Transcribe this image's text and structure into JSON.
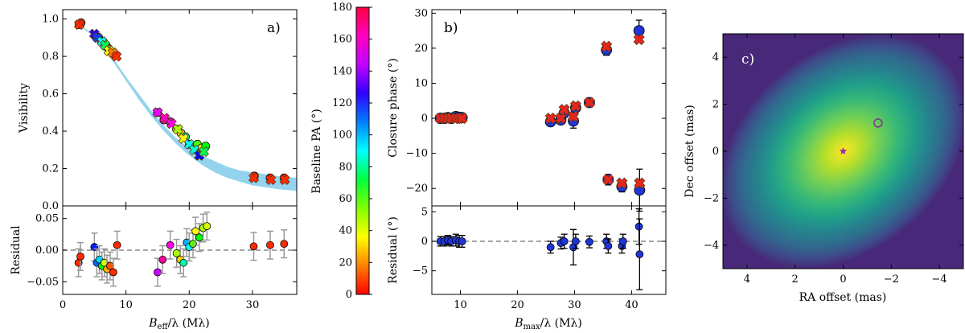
{
  "colors": {
    "band": "#87ceeb",
    "orange_marker": "#f07a2a",
    "red_marker": "#e8251b",
    "blue_marker": "#1f35d6",
    "residual_line": "#888888",
    "errbar_gray": "#999999"
  },
  "chart_data": [
    {
      "id": "a",
      "panel_label": "a)",
      "type": "scatter",
      "ylabel": "Visibility",
      "xlim": [
        0,
        37
      ],
      "ylim": [
        0,
        1.05
      ],
      "xticks": [
        "0",
        "10",
        "20",
        "30"
      ],
      "yticks": [
        "0.0",
        "0.2",
        "0.4",
        "0.6",
        "0.8",
        "1.0"
      ],
      "model_band": {
        "x": [
          0,
          2,
          4,
          6,
          8,
          10,
          12,
          14,
          16,
          18,
          20,
          22,
          24,
          26,
          28,
          30,
          32,
          34,
          37
        ],
        "lower": [
          1.0,
          0.98,
          0.93,
          0.86,
          0.77,
          0.67,
          0.57,
          0.48,
          0.4,
          0.33,
          0.27,
          0.22,
          0.18,
          0.15,
          0.13,
          0.11,
          0.1,
          0.09,
          0.08
        ],
        "upper": [
          1.0,
          0.98,
          0.94,
          0.87,
          0.79,
          0.69,
          0.6,
          0.51,
          0.43,
          0.36,
          0.31,
          0.27,
          0.24,
          0.21,
          0.19,
          0.18,
          0.17,
          0.16,
          0.15
        ]
      },
      "observed": {
        "x": [
          2.6,
          2.9,
          5.2,
          5.7,
          6.1,
          6.6,
          7.0,
          7.3,
          7.8,
          8.2,
          15.0,
          16.0,
          17.0,
          18.0,
          18.7,
          19.4,
          20.0,
          20.7,
          21.3,
          22.0,
          22.6,
          30.3,
          32.8,
          35.0
        ],
        "y": [
          0.97,
          0.98,
          0.91,
          0.9,
          0.88,
          0.87,
          0.85,
          0.84,
          0.82,
          0.81,
          0.5,
          0.46,
          0.45,
          0.41,
          0.39,
          0.37,
          0.33,
          0.32,
          0.33,
          0.31,
          0.32,
          0.16,
          0.15,
          0.15
        ],
        "pa": [
          5,
          5,
          120,
          110,
          95,
          60,
          35,
          20,
          10,
          5,
          150,
          170,
          160,
          40,
          25,
          80,
          100,
          90,
          50,
          30,
          60,
          5,
          5,
          5
        ],
        "yerr": 0.015
      },
      "model_points": {
        "x": [
          2.6,
          5.0,
          5.5,
          6.2,
          6.7,
          7.3,
          7.9,
          8.5,
          15.0,
          16.1,
          17.2,
          18.2,
          19.1,
          20.0,
          20.8,
          21.6,
          22.3,
          30.2,
          32.9,
          35.1
        ],
        "y": [
          0.97,
          0.92,
          0.9,
          0.88,
          0.86,
          0.83,
          0.82,
          0.8,
          0.5,
          0.47,
          0.44,
          0.41,
          0.36,
          0.33,
          0.3,
          0.27,
          0.29,
          0.15,
          0.14,
          0.14
        ],
        "pa": [
          5,
          130,
          115,
          90,
          70,
          30,
          15,
          5,
          155,
          165,
          160,
          40,
          30,
          90,
          85,
          125,
          70,
          5,
          5,
          5
        ]
      }
    },
    {
      "id": "a_residual",
      "type": "scatter",
      "ylabel": "Residual",
      "xlabel": "B_eff/λ (Mλ)",
      "xlabel_main": "B",
      "xlabel_sub": "eff",
      "xlabel_rest": "/λ (Mλ)",
      "xlim": [
        0,
        37
      ],
      "ylim": [
        -0.07,
        0.07
      ],
      "xticks": [
        "0",
        "10",
        "20",
        "30"
      ],
      "yticks": [
        "−0.05",
        "0.00",
        "0.05"
      ],
      "points": {
        "x": [
          2.5,
          2.8,
          5.0,
          5.4,
          5.8,
          6.2,
          6.6,
          7.0,
          7.5,
          8.0,
          8.6,
          15.0,
          15.8,
          17.0,
          18.0,
          18.6,
          19.1,
          19.6,
          20.0,
          20.6,
          21.0,
          21.6,
          22.2,
          22.8,
          30.2,
          32.8,
          35.0
        ],
        "y": [
          -0.02,
          -0.01,
          0.005,
          -0.02,
          -0.015,
          -0.025,
          -0.02,
          -0.03,
          -0.025,
          -0.035,
          0.008,
          -0.035,
          -0.015,
          0.008,
          -0.005,
          -0.015,
          -0.02,
          0.012,
          0.005,
          0.01,
          0.03,
          0.02,
          0.035,
          0.038,
          0.006,
          0.008,
          0.01
        ],
        "pa": [
          5,
          5,
          120,
          110,
          95,
          60,
          35,
          20,
          10,
          5,
          5,
          150,
          170,
          160,
          40,
          25,
          80,
          100,
          90,
          50,
          30,
          60,
          40,
          35,
          5,
          5,
          5
        ],
        "yerr": 0.022
      }
    },
    {
      "id": "colorbar",
      "type": "heatmap",
      "label": "Baseline PA (°)",
      "range": [
        0,
        180
      ],
      "ticks": [
        "0",
        "20",
        "40",
        "60",
        "80",
        "100",
        "120",
        "140",
        "160",
        "180"
      ]
    },
    {
      "id": "b",
      "panel_label": "b)",
      "type": "scatter",
      "ylabel": "Closure phase (°)",
      "xlim": [
        5,
        46
      ],
      "ylim": [
        -25,
        31
      ],
      "xticks": [
        "10",
        "20",
        "30",
        "40"
      ],
      "yticks": [
        "−20",
        "−10",
        "0",
        "10",
        "20",
        "30"
      ],
      "observed": {
        "x": [
          6.5,
          7.2,
          7.8,
          8.4,
          9.2,
          9.8,
          10.3,
          25.8,
          27.6,
          28.2,
          29.8,
          30.2,
          32.6,
          35.6,
          35.9,
          38.3,
          41.3,
          41.4
        ],
        "y": [
          0.0,
          0.0,
          0.2,
          0.0,
          0.5,
          0.3,
          0.2,
          -1.0,
          -0.5,
          1.5,
          -0.8,
          3.0,
          4.5,
          19.5,
          -17.5,
          -19.5,
          25.0,
          -20.5
        ],
        "yerr": [
          0.6,
          0.6,
          0.6,
          0.6,
          0.8,
          0.8,
          0.8,
          1.2,
          1.0,
          1.2,
          2.0,
          1.2,
          1.0,
          1.5,
          1.5,
          1.5,
          3.0,
          6.0
        ]
      },
      "model": {
        "x": [
          6.5,
          7.2,
          7.8,
          8.4,
          9.2,
          9.8,
          10.3,
          25.8,
          27.6,
          28.2,
          29.8,
          30.2,
          32.6,
          35.6,
          35.9,
          38.3,
          41.3,
          41.4
        ],
        "y": [
          0.0,
          0.0,
          0.0,
          0.0,
          0.0,
          0.0,
          0.0,
          0.0,
          0.0,
          2.5,
          0.5,
          3.5,
          4.5,
          20.5,
          -17.5,
          -18.5,
          22.5,
          -18.5
        ]
      }
    },
    {
      "id": "b_residual",
      "type": "scatter",
      "ylabel": "Residual (°)",
      "xlabel": "B_max/λ (Mλ)",
      "xlabel_main": "B",
      "xlabel_sub": "max",
      "xlabel_rest": "/λ (Mλ)",
      "xlim": [
        5,
        46
      ],
      "ylim": [
        -9,
        6
      ],
      "xticks": [
        "10",
        "20",
        "30",
        "40"
      ],
      "yticks": [
        "−5",
        "0",
        "5"
      ],
      "points": {
        "x": [
          6.5,
          7.2,
          7.8,
          8.4,
          9.2,
          9.8,
          10.3,
          25.8,
          27.6,
          28.2,
          29.8,
          30.2,
          32.6,
          35.6,
          35.9,
          38.3,
          38.5,
          41.3,
          41.4
        ],
        "y": [
          0.0,
          0.0,
          0.2,
          0.0,
          0.2,
          0.0,
          0.0,
          -1.0,
          -0.3,
          0.0,
          -1.0,
          0.0,
          -0.1,
          0.0,
          -0.8,
          -0.8,
          0.0,
          2.5,
          -2.2
        ],
        "yerr": [
          0.8,
          0.8,
          0.8,
          0.8,
          1.0,
          1.0,
          1.0,
          1.0,
          1.0,
          1.2,
          3.0,
          1.2,
          1.0,
          1.2,
          1.2,
          1.2,
          1.2,
          3.0,
          6.0
        ]
      }
    },
    {
      "id": "c",
      "panel_label": "c)",
      "type": "heatmap",
      "xlabel": "RA offset (mas)",
      "ylabel": "Dec offset (mas)",
      "xlim": [
        5,
        -5
      ],
      "ylim": [
        -5,
        5
      ],
      "xticks": [
        "4",
        "2",
        "0",
        "−2",
        "−4"
      ],
      "yticks": [
        "−4",
        "−2",
        "0",
        "2",
        "4"
      ],
      "star": {
        "ra": 0.0,
        "dec": 0.0
      },
      "companion": {
        "ra": -1.45,
        "dec": 1.2
      },
      "gaussian": {
        "sigma_major": 2.2,
        "sigma_minor": 1.6,
        "angle_deg": 40
      }
    }
  ]
}
